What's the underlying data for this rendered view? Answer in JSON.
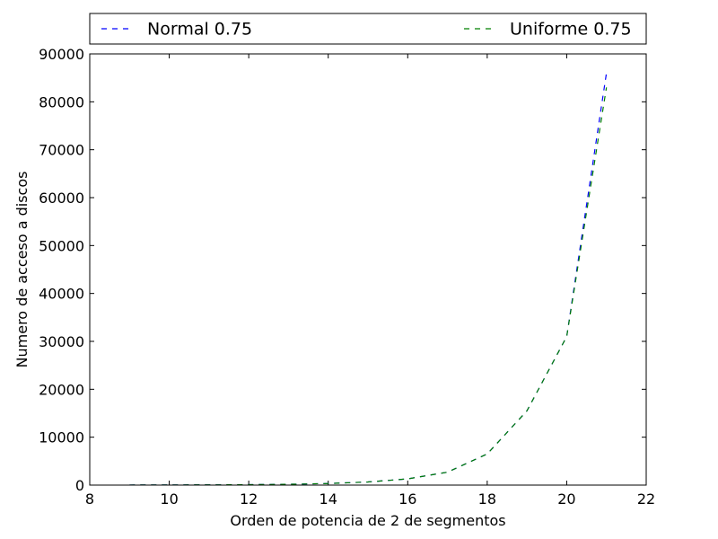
{
  "chart_data": {
    "type": "line",
    "title": "",
    "xlabel": "Orden de potencia de 2 de segmentos",
    "ylabel": "Numero de acceso a discos",
    "xlim": [
      8,
      22
    ],
    "ylim": [
      0,
      90000
    ],
    "x_ticks": [
      8,
      10,
      12,
      14,
      16,
      18,
      20,
      22
    ],
    "y_ticks": [
      0,
      10000,
      20000,
      30000,
      40000,
      50000,
      60000,
      70000,
      80000,
      90000
    ],
    "grid": false,
    "legend_position": "top, above plot",
    "x": [
      9,
      10,
      11,
      12,
      13,
      14,
      15,
      16,
      17,
      18,
      19,
      20,
      21
    ],
    "series": [
      {
        "name": "Normal 0.75",
        "color": "#0000ff",
        "line_style": "dashed",
        "values": [
          15,
          30,
          50,
          90,
          170,
          330,
          650,
          1300,
          2700,
          6500,
          15500,
          31000,
          86000
        ]
      },
      {
        "name": "Uniforme 0.75",
        "color": "#008000",
        "line_style": "dashed",
        "values": [
          15,
          30,
          50,
          90,
          170,
          330,
          650,
          1300,
          2700,
          6500,
          15500,
          31000,
          83000
        ]
      }
    ]
  }
}
